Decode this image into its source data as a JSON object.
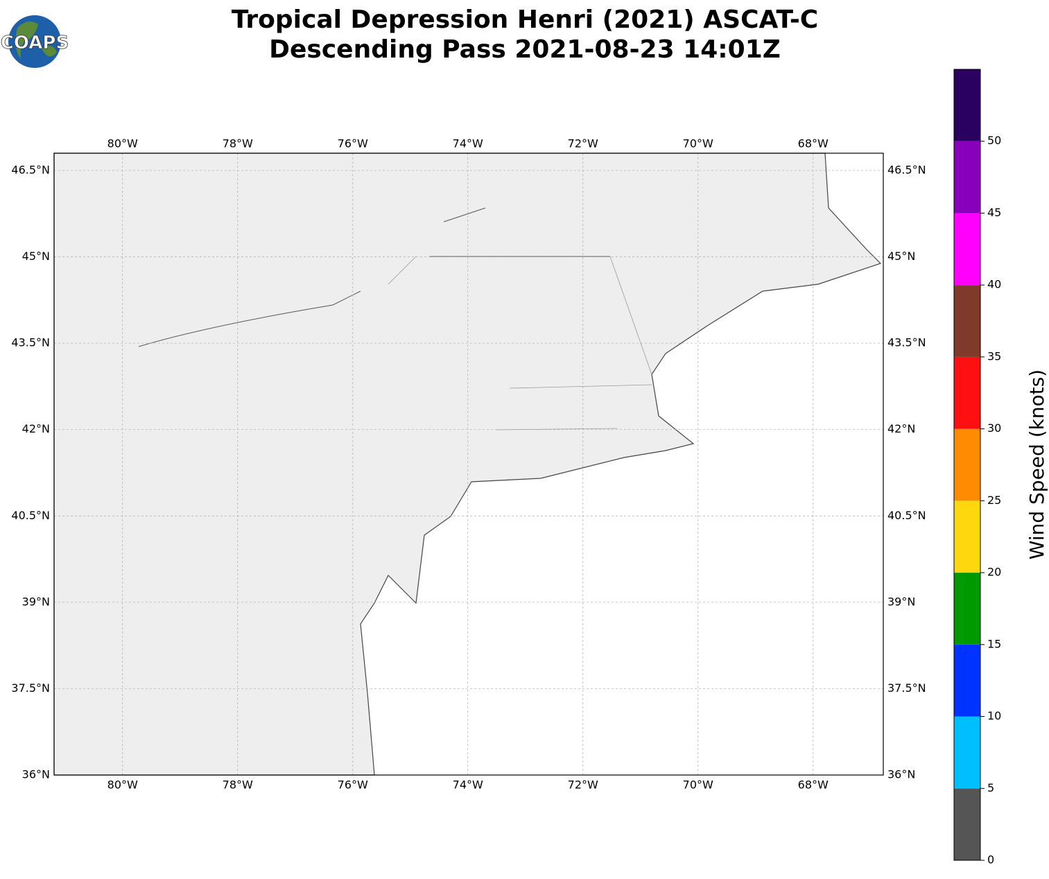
{
  "title_lines": [
    "Tropical Depression Henri (2021) ASCAT-C",
    "Descending Pass 2021-08-23 14:01Z"
  ],
  "logo": "COAPS",
  "map": {
    "lon_range": [
      -81.19,
      -66.78
    ],
    "lat_range": [
      36,
      46.8
    ],
    "grid": true,
    "lon_ticks": [
      {
        "value": -80,
        "label": "80°W"
      },
      {
        "value": -78,
        "label": "78°W"
      },
      {
        "value": -76,
        "label": "76°W"
      },
      {
        "value": -74,
        "label": "74°W"
      },
      {
        "value": -72,
        "label": "72°W"
      },
      {
        "value": -70,
        "label": "70°W"
      },
      {
        "value": -68,
        "label": "68°W"
      }
    ],
    "lat_ticks": [
      {
        "value": 36,
        "label": "36°N"
      },
      {
        "value": 37.5,
        "label": "37.5°N"
      },
      {
        "value": 39,
        "label": "39°N"
      },
      {
        "value": 40.5,
        "label": "40.5°N"
      },
      {
        "value": 42,
        "label": "42°N"
      },
      {
        "value": 43.5,
        "label": "43.5°N"
      },
      {
        "value": 45,
        "label": "45°N"
      },
      {
        "value": 46.5,
        "label": "46.5°N"
      }
    ]
  },
  "colorbar": {
    "label": "Wind Speed (knots)",
    "range": [
      0,
      55
    ],
    "ticks": [
      0,
      5,
      10,
      15,
      20,
      25,
      30,
      35,
      40,
      45,
      50
    ],
    "colors": [
      "#555555",
      "#00bfff",
      "#0033ff",
      "#009900",
      "#ffd70f",
      "#ff8c00",
      "#ff1010",
      "#7f3a2a",
      "#ff00ff",
      "#8800bb",
      "#2a0060"
    ]
  }
}
